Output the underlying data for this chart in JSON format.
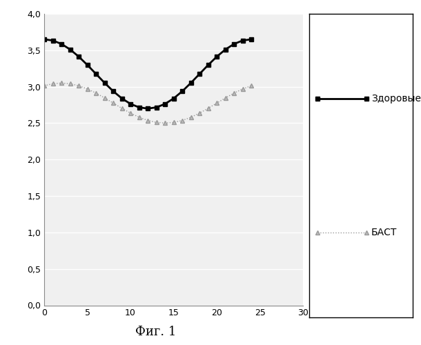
{
  "title": "",
  "xlabel_caption": "Фиг. 1",
  "ylim": [
    0.0,
    4.0
  ],
  "xlim": [
    0,
    30
  ],
  "yticks": [
    0.0,
    0.5,
    1.0,
    1.5,
    2.0,
    2.5,
    3.0,
    3.5,
    4.0
  ],
  "xticks": [
    0,
    5,
    10,
    15,
    20,
    25,
    30
  ],
  "series1_label": "Здоровые",
  "series2_label": "БАСТ",
  "series1_color": "#000000",
  "series2_color": "#999999",
  "background_color": "#f0f0f0",
  "grid_color": "#ffffff",
  "tick_decimal_sep": ","
}
